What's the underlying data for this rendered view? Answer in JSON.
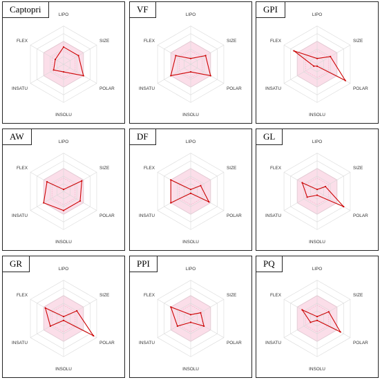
{
  "axes": [
    "LIPO",
    "SIZE",
    "POLAR",
    "INSOLU",
    "INSATU",
    "FLEX"
  ],
  "colors": {
    "line": "#cc0000",
    "band_fill": "#f9d3e2",
    "band_stroke": "#f0a3c0",
    "grid": "#d8d8d8"
  },
  "chart_data": [
    {
      "type": "radar",
      "title": "Captopri",
      "categories": [
        "LIPO",
        "SIZE",
        "POLAR",
        "INSOLU",
        "INSATU",
        "FLEX"
      ],
      "values": [
        0.45,
        0.45,
        0.6,
        0.2,
        0.3,
        0.25
      ],
      "range": [
        0,
        1
      ],
      "band": [
        0.35,
        0.6
      ]
    },
    {
      "type": "radar",
      "title": "VF",
      "categories": [
        "LIPO",
        "SIZE",
        "POLAR",
        "INSOLU",
        "INSATU",
        "FLEX"
      ],
      "values": [
        0.15,
        0.45,
        0.6,
        0.2,
        0.6,
        0.45
      ],
      "range": [
        0,
        1
      ],
      "band": [
        0.35,
        0.6
      ]
    },
    {
      "type": "radar",
      "title": "GPI",
      "categories": [
        "LIPO",
        "SIZE",
        "POLAR",
        "INSOLU",
        "INSATU",
        "FLEX"
      ],
      "values": [
        0.15,
        0.4,
        0.85,
        0.05,
        0.1,
        0.7
      ],
      "range": [
        0,
        1
      ],
      "band": [
        0.35,
        0.6
      ]
    },
    {
      "type": "radar",
      "title": "AW",
      "categories": [
        "LIPO",
        "SIZE",
        "POLAR",
        "INSOLU",
        "INSATU",
        "FLEX"
      ],
      "values": [
        0.05,
        0.55,
        0.5,
        0.5,
        0.6,
        0.5
      ],
      "range": [
        0,
        1
      ],
      "band": [
        0.35,
        0.6
      ]
    },
    {
      "type": "radar",
      "title": "DF",
      "categories": [
        "LIPO",
        "SIZE",
        "POLAR",
        "INSOLU",
        "INSATU",
        "FLEX"
      ],
      "values": [
        0.05,
        0.3,
        0.55,
        0.05,
        0.6,
        0.6
      ],
      "range": [
        0,
        1
      ],
      "band": [
        0.35,
        0.6
      ]
    },
    {
      "type": "radar",
      "title": "GL",
      "categories": [
        "LIPO",
        "SIZE",
        "POLAR",
        "INSOLU",
        "INSATU",
        "FLEX"
      ],
      "values": [
        0.05,
        0.25,
        0.8,
        0.1,
        0.3,
        0.45
      ],
      "range": [
        0,
        1
      ],
      "band": [
        0.35,
        0.6
      ]
    },
    {
      "type": "radar",
      "title": "GR",
      "categories": [
        "LIPO",
        "SIZE",
        "POLAR",
        "INSOLU",
        "INSATU",
        "FLEX"
      ],
      "values": [
        0.05,
        0.4,
        0.9,
        0.05,
        0.4,
        0.55
      ],
      "range": [
        0,
        1
      ],
      "band": [
        0.35,
        0.6
      ]
    },
    {
      "type": "radar",
      "title": "PPI",
      "categories": [
        "LIPO",
        "SIZE",
        "POLAR",
        "INSOLU",
        "INSATU",
        "FLEX"
      ],
      "values": [
        0.1,
        0.3,
        0.4,
        0.1,
        0.4,
        0.6
      ],
      "range": [
        0,
        1
      ],
      "band": [
        0.35,
        0.6
      ]
    },
    {
      "type": "radar",
      "title": "PQ",
      "categories": [
        "LIPO",
        "SIZE",
        "POLAR",
        "INSOLU",
        "INSATU",
        "FLEX"
      ],
      "values": [
        0.05,
        0.35,
        0.7,
        0.05,
        0.2,
        0.45
      ],
      "range": [
        0,
        1
      ],
      "band": [
        0.35,
        0.6
      ]
    }
  ]
}
